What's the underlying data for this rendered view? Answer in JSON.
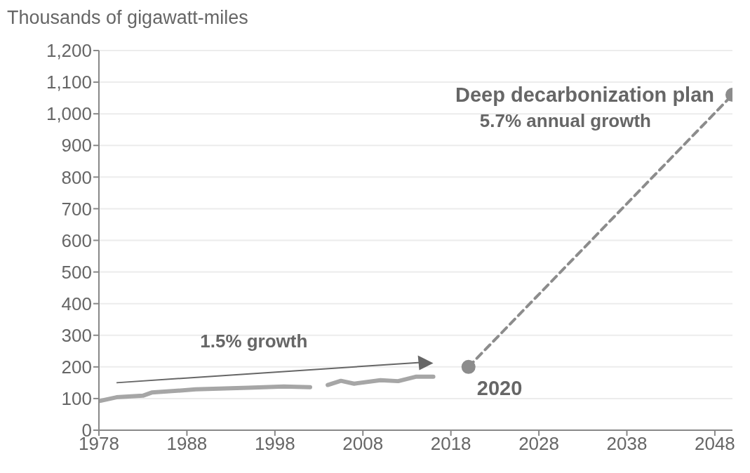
{
  "chart_data": {
    "type": "line",
    "ylabel": "Thousands of gigawatt-miles",
    "xlim": [
      1978,
      2050
    ],
    "xticks": [
      1978,
      1988,
      1998,
      2008,
      2018,
      2028,
      2038,
      2048
    ],
    "ylim": [
      0,
      1200
    ],
    "yticks": [
      0,
      100,
      200,
      300,
      400,
      500,
      600,
      700,
      800,
      900,
      {
        "value": 1000,
        "label": "1,000"
      },
      {
        "value": 1100,
        "label": "1,100"
      },
      {
        "value": 1200,
        "label": "1,200"
      }
    ],
    "grid": "y",
    "series": [
      {
        "color": "#a6a6a6",
        "marker": "none",
        "line_style": "solid",
        "x": [
          1978,
          1980,
          1983,
          1984,
          1989,
          1995,
          1999,
          2002,
          2002.5,
          2004,
          2005.5,
          2007,
          2010,
          2012,
          2014,
          2016
        ],
        "values": [
          92,
          104,
          109,
          119,
          129,
          134,
          138,
          136,
          null,
          143,
          156,
          147,
          158,
          155,
          169,
          169
        ]
      },
      {
        "color": "#8c8c8c",
        "marker": "circle",
        "line_style": "dashed",
        "x": [
          2020,
          2050
        ],
        "values": [
          200,
          1060
        ]
      }
    ],
    "annotations": [
      "1.5% growth",
      {
        "text": "2020",
        "x": 2020,
        "y": 200
      },
      {
        "text": "Deep decarbonization plan",
        "x": 2050,
        "y": 1060
      },
      "5.7% annual growth"
    ]
  }
}
